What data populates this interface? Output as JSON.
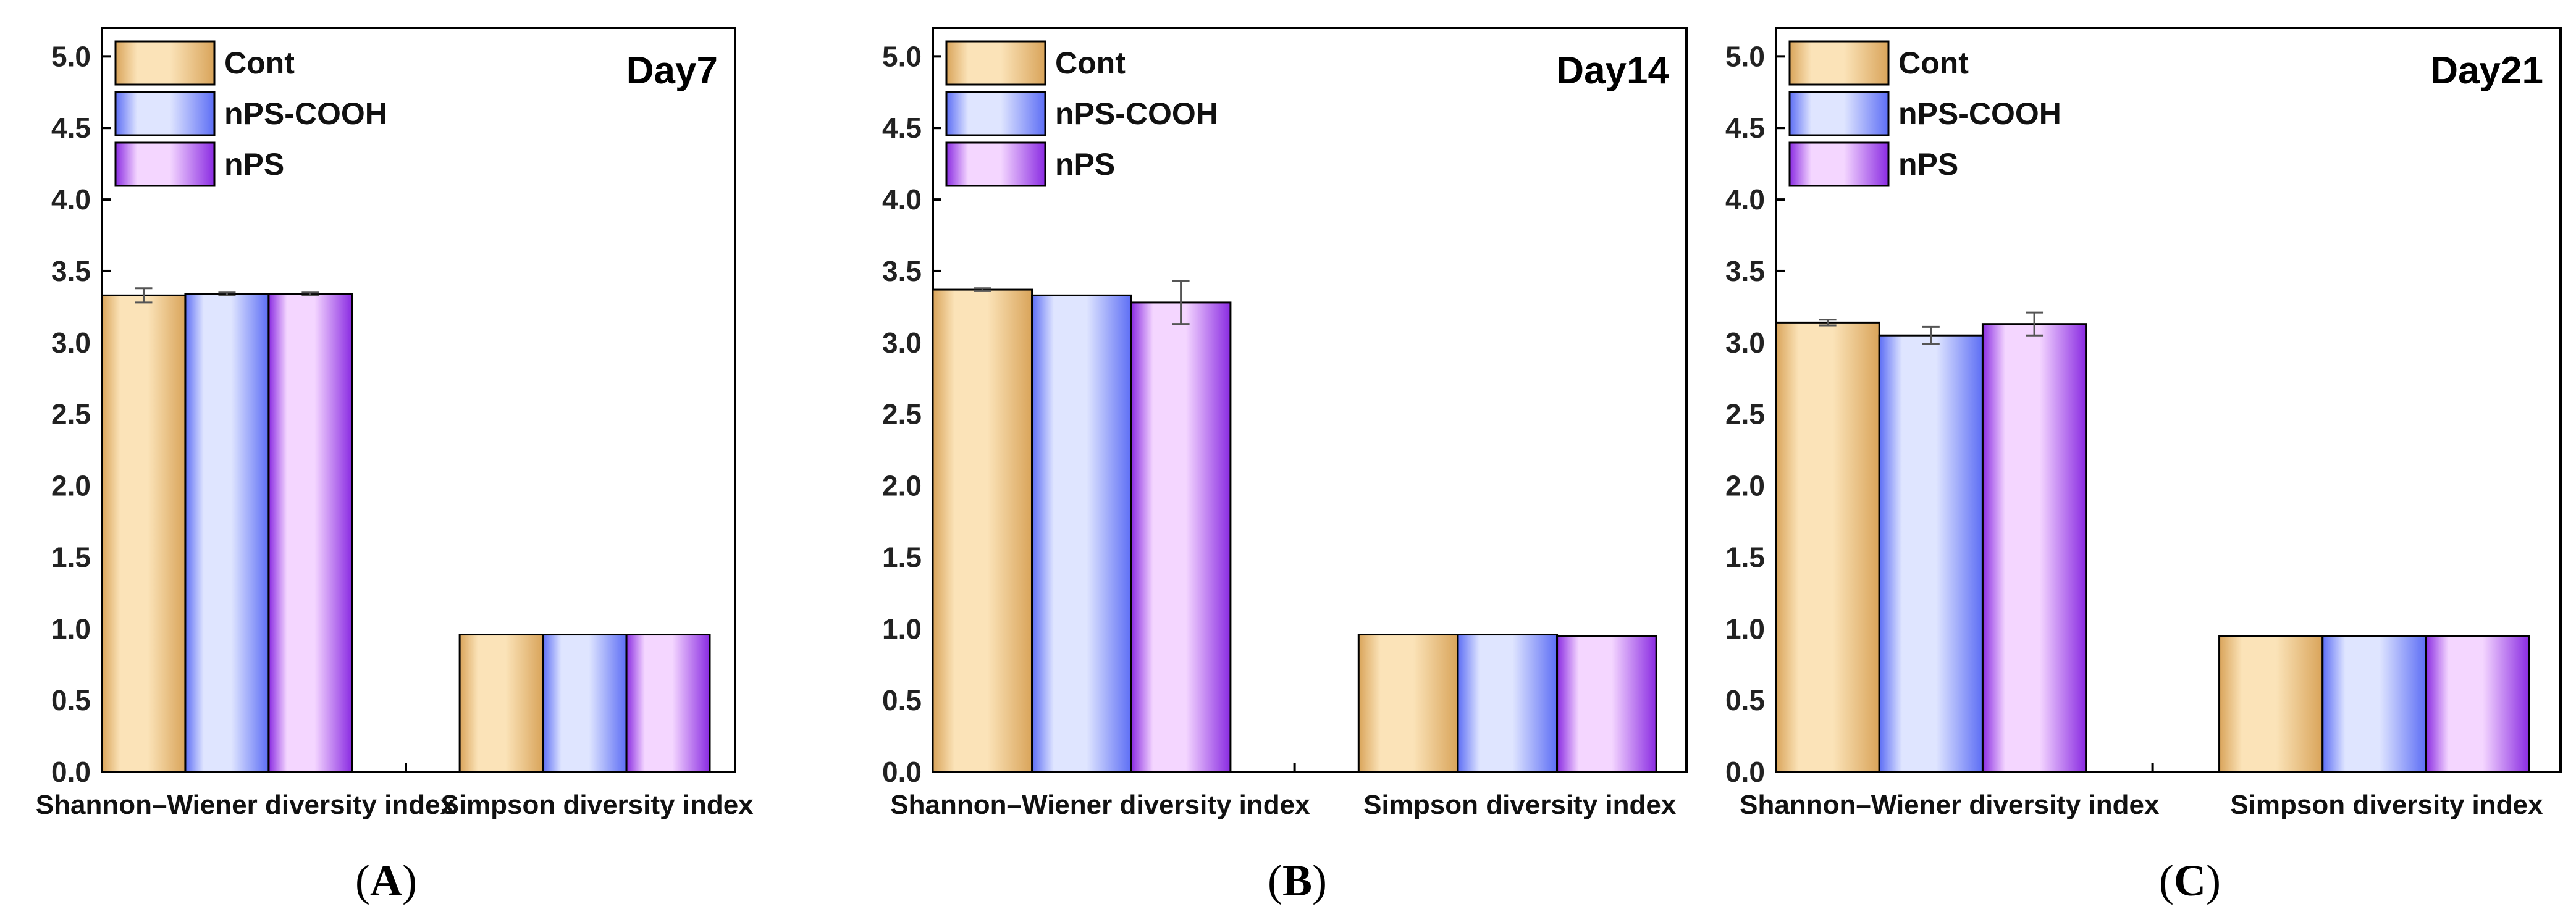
{
  "chart_data": [
    {
      "type": "bar",
      "panel": "A",
      "title": "Day7",
      "caption": {
        "open": "(",
        "letter": "A",
        "close": ")"
      },
      "categories": [
        "Shannon–Wiener diversity index",
        "Simpson diversity index"
      ],
      "series": [
        {
          "name": "Cont",
          "values": [
            3.33,
            0.96
          ],
          "errors": [
            0.05,
            0
          ]
        },
        {
          "name": "nPS-COOH",
          "values": [
            3.34,
            0.96
          ],
          "errors": [
            0.01,
            0
          ]
        },
        {
          "name": "nPS",
          "values": [
            3.34,
            0.96
          ],
          "errors": [
            0.01,
            0
          ]
        }
      ],
      "xlabel": "",
      "ylabel": "",
      "ylim": [
        0,
        5.2
      ],
      "yticks": [
        "0.0",
        "0.5",
        "1.0",
        "1.5",
        "2.0",
        "2.5",
        "3.0",
        "3.5",
        "4.0",
        "4.5",
        "5.0"
      ],
      "legend": "top-left"
    },
    {
      "type": "bar",
      "panel": "B",
      "title": "Day14",
      "caption": {
        "open": "(",
        "letter": "B",
        "close": ")"
      },
      "categories": [
        "Shannon–Wiener diversity index",
        "Simpson diversity index"
      ],
      "series": [
        {
          "name": "Cont",
          "values": [
            3.37,
            0.96
          ],
          "errors": [
            0.01,
            0
          ]
        },
        {
          "name": "nPS-COOH",
          "values": [
            3.33,
            0.96
          ],
          "errors": [
            0,
            0
          ]
        },
        {
          "name": "nPS",
          "values": [
            3.28,
            0.95
          ],
          "errors": [
            0.15,
            0
          ]
        }
      ],
      "xlabel": "",
      "ylabel": "",
      "ylim": [
        0,
        5.2
      ],
      "yticks": [
        "0.0",
        "0.5",
        "1.0",
        "1.5",
        "2.0",
        "2.5",
        "3.0",
        "3.5",
        "4.0",
        "4.5",
        "5.0"
      ],
      "legend": "top-left"
    },
    {
      "type": "bar",
      "panel": "C",
      "title": "Day21",
      "caption": {
        "open": "(",
        "letter": "C",
        "close": ")"
      },
      "categories": [
        "Shannon–Wiener diversity index",
        "Simpson diversity index"
      ],
      "series": [
        {
          "name": "Cont",
          "values": [
            3.14,
            0.95
          ],
          "errors": [
            0.02,
            0
          ]
        },
        {
          "name": "nPS-COOH",
          "values": [
            3.05,
            0.95
          ],
          "errors": [
            0.06,
            0
          ]
        },
        {
          "name": "nPS",
          "values": [
            3.13,
            0.95
          ],
          "errors": [
            0.08,
            0
          ]
        }
      ],
      "xlabel": "",
      "ylabel": "",
      "ylim": [
        0,
        5.2
      ],
      "yticks": [
        "0.0",
        "0.5",
        "1.0",
        "1.5",
        "2.0",
        "2.5",
        "3.0",
        "3.5",
        "4.0",
        "4.5",
        "5.0"
      ],
      "legend": "top-left"
    }
  ],
  "series_colors": {
    "Cont": {
      "light": "#fbe3b8",
      "dark": "#d9a45a",
      "edge": "#000000"
    },
    "nPS-COOH": {
      "light": "#dfe5ff",
      "dark": "#5d6ef5",
      "edge": "#000000"
    },
    "nPS": {
      "light": "#f4d6ff",
      "dark": "#8a2be2",
      "edge": "#000000"
    }
  }
}
